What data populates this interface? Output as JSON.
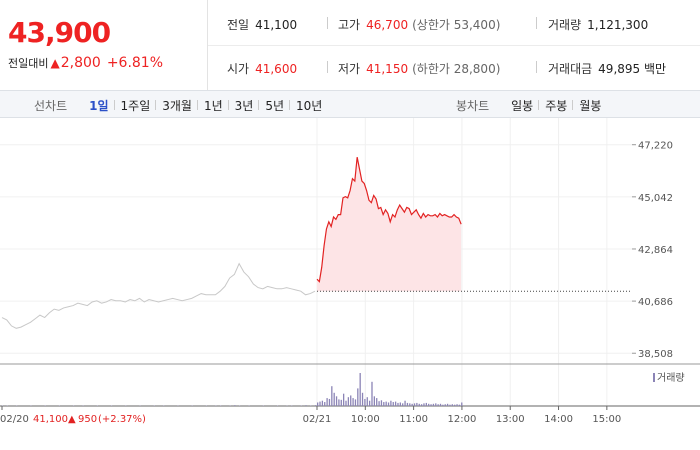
{
  "quote": {
    "price": "43,900",
    "change_label": "전일대비",
    "change_arrow": "▲",
    "change_value": "2,800",
    "change_pct": "+6.81%"
  },
  "stats": {
    "prev_close_label": "전일",
    "prev_close": "41,100",
    "open_label": "시가",
    "open": "41,600",
    "high_label": "고가",
    "high": "46,700",
    "upper_limit": "(상한가 53,400)",
    "low_label": "저가",
    "low": "41,150",
    "lower_limit": "(하한가 28,800)",
    "volume_label": "거래량",
    "volume": "1,121,300",
    "turnover_label": "거래대금",
    "turnover": "49,895 백만"
  },
  "toolbar": {
    "line_chart_label": "선차트",
    "line_periods": [
      "1일",
      "1주일",
      "3개월",
      "1년",
      "3년",
      "5년",
      "10년"
    ],
    "active_period": "1일",
    "candle_chart_label": "봉차트",
    "candle_periods": [
      "일봉",
      "주봉",
      "월봉"
    ]
  },
  "colors": {
    "up": "#e22222",
    "down": "#2b50c8",
    "volume": "#8b84b6",
    "prev_day_line": "#c8c8c8"
  },
  "chart_data": {
    "type": "line",
    "y_ticks": [
      "47,220",
      "45,042",
      "42,864",
      "40,686",
      "38,508"
    ],
    "y_tick_values": [
      47220,
      45042,
      42864,
      40686,
      38508
    ],
    "ylim": [
      38100,
      47500
    ],
    "baseline": 41100,
    "x_ticks": [
      "02/20",
      "02/21",
      "10:00",
      "11:00",
      "12:00",
      "13:00",
      "14:00",
      "15:00"
    ],
    "prev_day": {
      "label": "02/20",
      "close": "41,100",
      "change_arrow": "▲",
      "change": "950",
      "change_pct": "(+2.37%)",
      "prices": [
        40000,
        39900,
        39650,
        39550,
        39600,
        39700,
        39800,
        39950,
        40100,
        40000,
        40200,
        40350,
        40300,
        40400,
        40450,
        40500,
        40600,
        40550,
        40500,
        40650,
        40700,
        40600,
        40650,
        40750,
        40700,
        40700,
        40650,
        40750,
        40700,
        40800,
        40650,
        40750,
        40700,
        40650,
        40700,
        40750,
        40800,
        40750,
        40700,
        40750,
        40800,
        40900,
        41000,
        40950,
        40950,
        40950,
        41100,
        41300,
        41650,
        41800,
        42250,
        41900,
        41700,
        41400,
        41250,
        41200,
        41300,
        41250,
        41200,
        41200,
        41250,
        41200,
        41150,
        41100,
        40950,
        41000,
        41100
      ]
    },
    "today": {
      "label": "02/21",
      "prices": [
        41600,
        41500,
        42100,
        43000,
        43700,
        44000,
        43800,
        44200,
        44100,
        44300,
        44300,
        45000,
        45050,
        45000,
        45300,
        45800,
        45700,
        46700,
        46200,
        45700,
        45600,
        45300,
        44900,
        44800,
        45100,
        44950,
        44550,
        44600,
        44300,
        44500,
        44350,
        44000,
        44300,
        44200,
        44500,
        44700,
        44550,
        44400,
        44600,
        44550,
        44300,
        44400,
        44500,
        44300,
        44150,
        44350,
        44200,
        44300,
        44250,
        44250,
        44300,
        44200,
        44350,
        44250,
        44300,
        44250,
        44200,
        44200,
        44300,
        44200,
        44150,
        43900
      ]
    },
    "volume": {
      "label": "거래량",
      "prev_day": [
        1,
        1,
        0,
        1,
        0,
        0,
        1,
        0,
        0,
        1,
        0,
        0,
        1,
        0,
        0,
        1,
        0,
        1,
        0,
        0,
        1,
        0,
        0,
        1,
        0,
        0,
        1,
        0,
        0,
        1,
        0,
        0,
        1,
        0,
        1,
        0,
        0,
        1,
        0,
        0,
        1,
        0,
        0,
        1,
        0,
        1,
        1,
        0,
        1,
        2,
        1,
        0,
        1,
        0,
        0,
        1,
        0,
        0,
        1,
        0,
        1,
        1,
        0,
        1,
        2,
        1,
        2
      ],
      "today": [
        8,
        10,
        12,
        9,
        18,
        16,
        45,
        30,
        22,
        15,
        14,
        28,
        12,
        20,
        24,
        18,
        15,
        40,
        75,
        30,
        16,
        20,
        12,
        55,
        22,
        18,
        11,
        13,
        9,
        10,
        8,
        12,
        9,
        10,
        7,
        8,
        6,
        12,
        7,
        6,
        5,
        6,
        7,
        5,
        4,
        6,
        7,
        5,
        4,
        5,
        6,
        4,
        5,
        3,
        4,
        5,
        3,
        4,
        3,
        4,
        3,
        8
      ]
    }
  }
}
